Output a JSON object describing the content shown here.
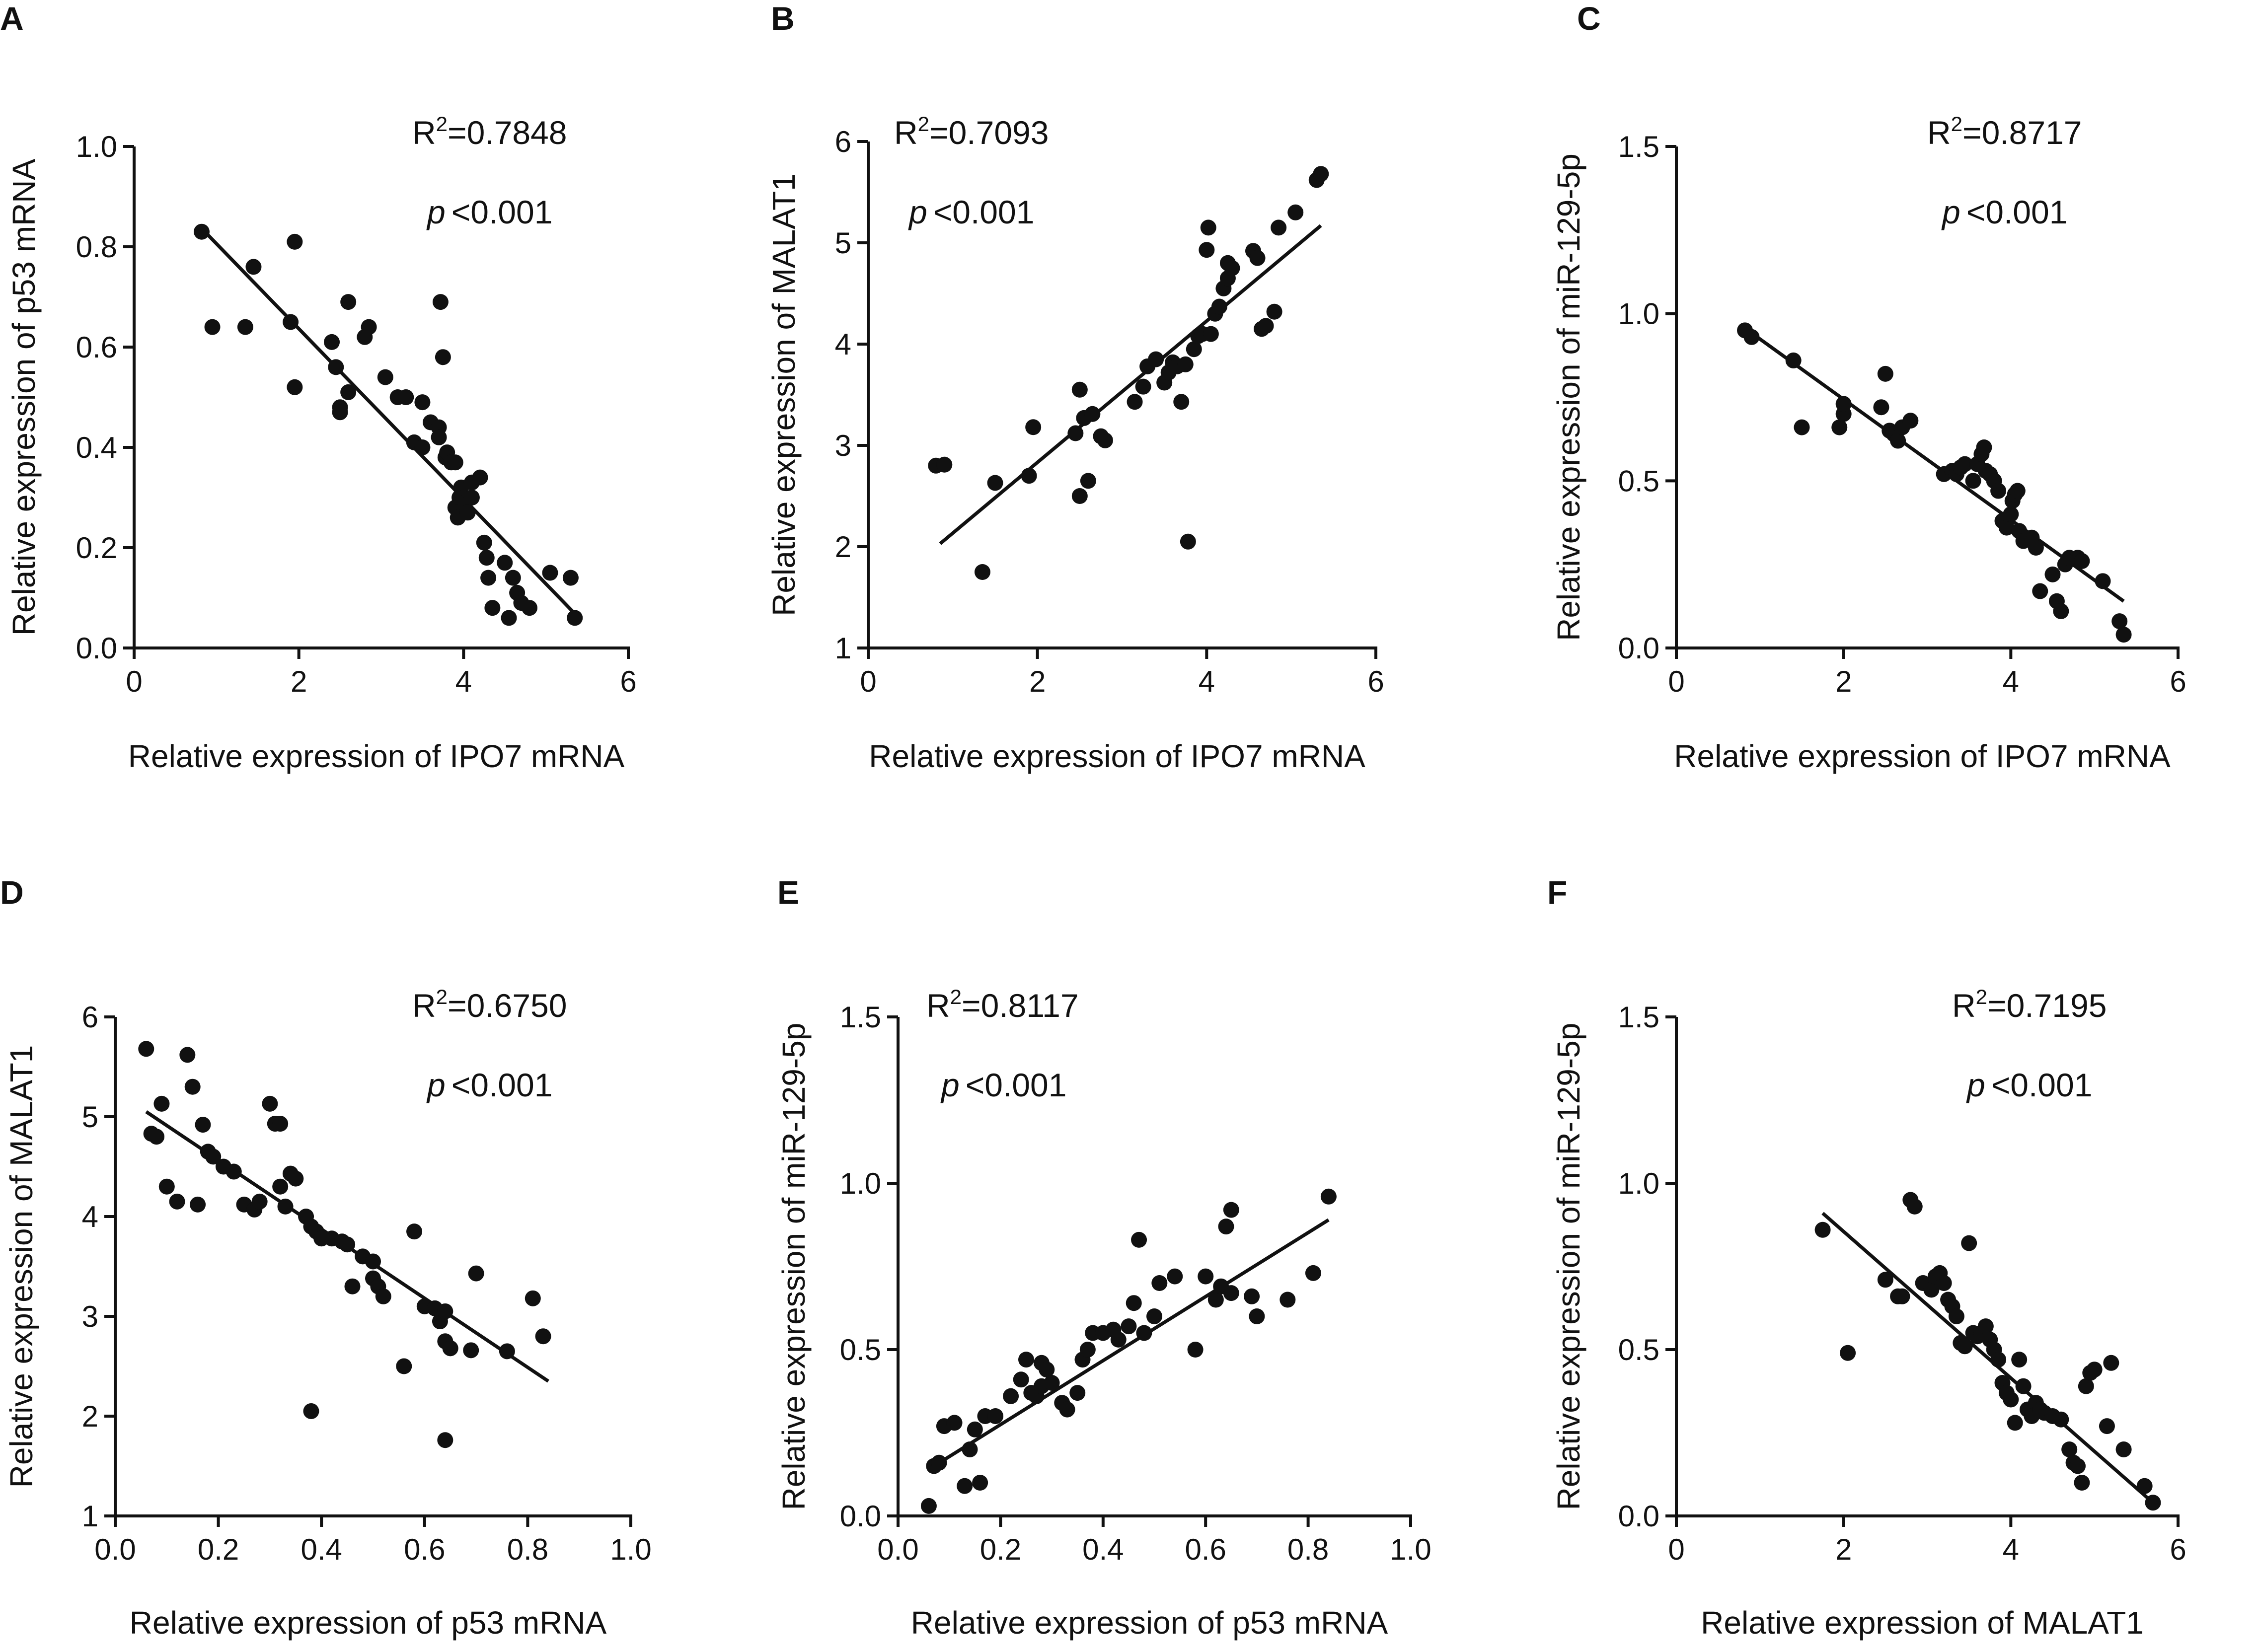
{
  "chart_data": [
    {
      "panel": "A",
      "type": "scatter",
      "xlabel": "Relative expression of IPO7 mRNA",
      "ylabel": "Relative expression of p53 mRNA",
      "xlim": [
        0,
        6
      ],
      "ylim": [
        0.0,
        1.0
      ],
      "xticks": [
        "0",
        "2",
        "4",
        "6"
      ],
      "yticks": [
        "0.0",
        "0.2",
        "0.4",
        "0.6",
        "0.8",
        "1.0"
      ],
      "stat_r2": "=0.7848",
      "stat_p": "<0.001",
      "fit": [
        [
          0.8,
          0.84
        ],
        [
          5.4,
          0.06
        ]
      ],
      "points": [
        [
          0.82,
          0.83
        ],
        [
          0.95,
          0.64
        ],
        [
          1.35,
          0.64
        ],
        [
          1.45,
          0.76
        ],
        [
          1.9,
          0.65
        ],
        [
          1.95,
          0.81
        ],
        [
          1.95,
          0.52
        ],
        [
          2.4,
          0.61
        ],
        [
          2.45,
          0.56
        ],
        [
          2.5,
          0.48
        ],
        [
          2.5,
          0.47
        ],
        [
          2.6,
          0.51
        ],
        [
          2.6,
          0.69
        ],
        [
          2.8,
          0.62
        ],
        [
          2.85,
          0.64
        ],
        [
          3.05,
          0.54
        ],
        [
          3.2,
          0.5
        ],
        [
          3.3,
          0.5
        ],
        [
          3.4,
          0.41
        ],
        [
          3.5,
          0.4
        ],
        [
          3.5,
          0.49
        ],
        [
          3.6,
          0.45
        ],
        [
          3.7,
          0.44
        ],
        [
          3.7,
          0.42
        ],
        [
          3.72,
          0.69
        ],
        [
          3.75,
          0.58
        ],
        [
          3.78,
          0.38
        ],
        [
          3.8,
          0.39
        ],
        [
          3.85,
          0.37
        ],
        [
          3.9,
          0.37
        ],
        [
          3.9,
          0.28
        ],
        [
          3.93,
          0.26
        ],
        [
          3.95,
          0.3
        ],
        [
          3.97,
          0.32
        ],
        [
          4.0,
          0.3
        ],
        [
          4.02,
          0.29
        ],
        [
          4.05,
          0.27
        ],
        [
          4.1,
          0.3
        ],
        [
          4.1,
          0.33
        ],
        [
          4.2,
          0.34
        ],
        [
          4.25,
          0.21
        ],
        [
          4.28,
          0.18
        ],
        [
          4.3,
          0.14
        ],
        [
          4.35,
          0.08
        ],
        [
          4.5,
          0.17
        ],
        [
          4.55,
          0.06
        ],
        [
          4.6,
          0.14
        ],
        [
          4.65,
          0.11
        ],
        [
          4.7,
          0.09
        ],
        [
          4.8,
          0.08
        ],
        [
          5.05,
          0.15
        ],
        [
          5.3,
          0.14
        ],
        [
          5.35,
          0.06
        ]
      ]
    },
    {
      "panel": "B",
      "type": "scatter",
      "xlabel": "Relative expression of IPO7 mRNA",
      "ylabel": "Relative expression of MALAT1",
      "xlim": [
        0,
        6
      ],
      "ylim": [
        1,
        6
      ],
      "xticks": [
        "0",
        "2",
        "4",
        "6"
      ],
      "yticks": [
        "1",
        "2",
        "3",
        "4",
        "5",
        "6"
      ],
      "stat_r2": "=0.7093",
      "stat_p": "<0.001",
      "fit": [
        [
          0.85,
          2.03
        ],
        [
          5.35,
          5.17
        ]
      ],
      "points": [
        [
          0.8,
          2.8
        ],
        [
          0.9,
          2.81
        ],
        [
          1.35,
          1.75
        ],
        [
          1.5,
          2.63
        ],
        [
          1.9,
          2.7
        ],
        [
          1.95,
          3.18
        ],
        [
          2.45,
          3.12
        ],
        [
          2.5,
          2.5
        ],
        [
          2.5,
          3.55
        ],
        [
          2.55,
          3.27
        ],
        [
          2.6,
          2.65
        ],
        [
          2.65,
          3.31
        ],
        [
          2.75,
          3.09
        ],
        [
          2.8,
          3.05
        ],
        [
          3.15,
          3.43
        ],
        [
          3.25,
          3.58
        ],
        [
          3.3,
          3.78
        ],
        [
          3.4,
          3.85
        ],
        [
          3.5,
          3.62
        ],
        [
          3.55,
          3.72
        ],
        [
          3.6,
          3.82
        ],
        [
          3.65,
          3.78
        ],
        [
          3.7,
          3.43
        ],
        [
          3.75,
          3.8
        ],
        [
          3.78,
          2.05
        ],
        [
          3.85,
          3.95
        ],
        [
          3.9,
          4.08
        ],
        [
          3.95,
          4.1
        ],
        [
          4.0,
          4.93
        ],
        [
          4.02,
          5.15
        ],
        [
          4.05,
          4.1
        ],
        [
          4.1,
          4.3
        ],
        [
          4.15,
          4.37
        ],
        [
          4.2,
          4.55
        ],
        [
          4.25,
          4.65
        ],
        [
          4.25,
          4.8
        ],
        [
          4.3,
          4.75
        ],
        [
          4.55,
          4.92
        ],
        [
          4.6,
          4.85
        ],
        [
          4.65,
          4.15
        ],
        [
          4.7,
          4.18
        ],
        [
          4.8,
          4.32
        ],
        [
          4.85,
          5.15
        ],
        [
          5.05,
          5.3
        ],
        [
          5.3,
          5.62
        ],
        [
          5.35,
          5.68
        ]
      ]
    },
    {
      "panel": "C",
      "type": "scatter",
      "xlabel": "Relative expression of IPO7 mRNA",
      "ylabel": "Relative expression of miR-129-5p",
      "xlim": [
        0,
        6
      ],
      "ylim": [
        0.0,
        1.5
      ],
      "xticks": [
        "0",
        "2",
        "4",
        "6"
      ],
      "yticks": [
        "0.0",
        "0.5",
        "1.0",
        "1.5"
      ],
      "stat_r2": "=0.8717",
      "stat_p": "<0.001",
      "fit": [
        [
          0.8,
          0.96
        ],
        [
          5.35,
          0.14
        ]
      ],
      "points": [
        [
          0.82,
          0.95
        ],
        [
          0.9,
          0.93
        ],
        [
          1.4,
          0.86
        ],
        [
          1.5,
          0.66
        ],
        [
          1.95,
          0.66
        ],
        [
          2.0,
          0.7
        ],
        [
          2.0,
          0.73
        ],
        [
          2.45,
          0.72
        ],
        [
          2.5,
          0.82
        ],
        [
          2.55,
          0.65
        ],
        [
          2.6,
          0.64
        ],
        [
          2.65,
          0.62
        ],
        [
          2.7,
          0.66
        ],
        [
          2.8,
          0.68
        ],
        [
          3.2,
          0.52
        ],
        [
          3.3,
          0.53
        ],
        [
          3.35,
          0.52
        ],
        [
          3.4,
          0.54
        ],
        [
          3.45,
          0.55
        ],
        [
          3.55,
          0.5
        ],
        [
          3.6,
          0.55
        ],
        [
          3.65,
          0.58
        ],
        [
          3.68,
          0.6
        ],
        [
          3.7,
          0.53
        ],
        [
          3.75,
          0.52
        ],
        [
          3.8,
          0.5
        ],
        [
          3.85,
          0.47
        ],
        [
          3.9,
          0.38
        ],
        [
          3.95,
          0.36
        ],
        [
          4.0,
          0.4
        ],
        [
          4.02,
          0.44
        ],
        [
          4.05,
          0.46
        ],
        [
          4.08,
          0.47
        ],
        [
          4.1,
          0.35
        ],
        [
          4.15,
          0.32
        ],
        [
          4.25,
          0.33
        ],
        [
          4.3,
          0.3
        ],
        [
          4.35,
          0.17
        ],
        [
          4.5,
          0.22
        ],
        [
          4.55,
          0.14
        ],
        [
          4.6,
          0.11
        ],
        [
          4.65,
          0.25
        ],
        [
          4.7,
          0.27
        ],
        [
          4.8,
          0.27
        ],
        [
          4.85,
          0.26
        ],
        [
          5.1,
          0.2
        ],
        [
          5.3,
          0.08
        ],
        [
          5.35,
          0.04
        ]
      ]
    },
    {
      "panel": "D",
      "type": "scatter",
      "xlabel": "Relative expression of p53 mRNA",
      "ylabel": "Relative expression of MALAT1",
      "xlim": [
        0.0,
        1.0
      ],
      "ylim": [
        1,
        6
      ],
      "xticks": [
        "0.0",
        "0.2",
        "0.4",
        "0.6",
        "0.8",
        "1.0"
      ],
      "yticks": [
        "1",
        "2",
        "3",
        "4",
        "5",
        "6"
      ],
      "stat_r2": "=0.6750",
      "stat_p": "<0.001",
      "fit": [
        [
          0.06,
          5.05
        ],
        [
          0.84,
          2.35
        ]
      ],
      "points": [
        [
          0.06,
          5.68
        ],
        [
          0.07,
          4.83
        ],
        [
          0.08,
          4.8
        ],
        [
          0.09,
          5.13
        ],
        [
          0.1,
          4.3
        ],
        [
          0.12,
          4.15
        ],
        [
          0.14,
          5.62
        ],
        [
          0.15,
          5.3
        ],
        [
          0.16,
          4.12
        ],
        [
          0.17,
          4.92
        ],
        [
          0.18,
          4.65
        ],
        [
          0.19,
          4.6
        ],
        [
          0.21,
          4.5
        ],
        [
          0.23,
          4.45
        ],
        [
          0.25,
          4.12
        ],
        [
          0.27,
          4.07
        ],
        [
          0.28,
          4.15
        ],
        [
          0.3,
          5.13
        ],
        [
          0.31,
          4.93
        ],
        [
          0.32,
          4.93
        ],
        [
          0.32,
          4.3
        ],
        [
          0.33,
          4.1
        ],
        [
          0.34,
          4.43
        ],
        [
          0.35,
          4.38
        ],
        [
          0.37,
          4.0
        ],
        [
          0.38,
          3.9
        ],
        [
          0.39,
          3.85
        ],
        [
          0.4,
          3.78
        ],
        [
          0.38,
          2.05
        ],
        [
          0.42,
          3.78
        ],
        [
          0.44,
          3.75
        ],
        [
          0.45,
          3.72
        ],
        [
          0.46,
          3.3
        ],
        [
          0.48,
          3.6
        ],
        [
          0.5,
          3.55
        ],
        [
          0.5,
          3.38
        ],
        [
          0.51,
          3.3
        ],
        [
          0.52,
          3.2
        ],
        [
          0.56,
          2.5
        ],
        [
          0.58,
          3.85
        ],
        [
          0.6,
          3.1
        ],
        [
          0.62,
          3.08
        ],
        [
          0.63,
          2.95
        ],
        [
          0.64,
          3.05
        ],
        [
          0.64,
          2.75
        ],
        [
          0.65,
          2.68
        ],
        [
          0.64,
          1.76
        ],
        [
          0.69,
          2.66
        ],
        [
          0.7,
          3.43
        ],
        [
          0.76,
          2.65
        ],
        [
          0.81,
          3.18
        ],
        [
          0.83,
          2.8
        ]
      ]
    },
    {
      "panel": "E",
      "type": "scatter",
      "xlabel": "Relative expression of p53 mRNA",
      "ylabel": "Relative expression of miR-129-5p",
      "xlim": [
        0.0,
        1.0
      ],
      "ylim": [
        0.0,
        1.5
      ],
      "xticks": [
        "0.0",
        "0.2",
        "0.4",
        "0.6",
        "0.8",
        "1.0"
      ],
      "yticks": [
        "0.0",
        "0.5",
        "1.0",
        "1.5"
      ],
      "stat_r2": "=0.8117",
      "stat_p": "<0.001",
      "fit": [
        [
          0.06,
          0.14
        ],
        [
          0.84,
          0.89
        ]
      ],
      "points": [
        [
          0.06,
          0.03
        ],
        [
          0.07,
          0.15
        ],
        [
          0.08,
          0.16
        ],
        [
          0.09,
          0.27
        ],
        [
          0.11,
          0.28
        ],
        [
          0.13,
          0.09
        ],
        [
          0.14,
          0.2
        ],
        [
          0.15,
          0.26
        ],
        [
          0.16,
          0.1
        ],
        [
          0.17,
          0.3
        ],
        [
          0.19,
          0.3
        ],
        [
          0.22,
          0.36
        ],
        [
          0.24,
          0.41
        ],
        [
          0.25,
          0.47
        ],
        [
          0.26,
          0.37
        ],
        [
          0.27,
          0.36
        ],
        [
          0.28,
          0.39
        ],
        [
          0.28,
          0.46
        ],
        [
          0.29,
          0.44
        ],
        [
          0.3,
          0.4
        ],
        [
          0.32,
          0.34
        ],
        [
          0.33,
          0.32
        ],
        [
          0.35,
          0.37
        ],
        [
          0.36,
          0.47
        ],
        [
          0.37,
          0.5
        ],
        [
          0.38,
          0.55
        ],
        [
          0.4,
          0.55
        ],
        [
          0.42,
          0.56
        ],
        [
          0.43,
          0.53
        ],
        [
          0.45,
          0.57
        ],
        [
          0.46,
          0.64
        ],
        [
          0.47,
          0.83
        ],
        [
          0.48,
          0.55
        ],
        [
          0.5,
          0.6
        ],
        [
          0.51,
          0.7
        ],
        [
          0.54,
          0.72
        ],
        [
          0.58,
          0.5
        ],
        [
          0.6,
          0.72
        ],
        [
          0.62,
          0.65
        ],
        [
          0.63,
          0.69
        ],
        [
          0.64,
          0.87
        ],
        [
          0.65,
          0.92
        ],
        [
          0.65,
          0.67
        ],
        [
          0.69,
          0.66
        ],
        [
          0.7,
          0.6
        ],
        [
          0.76,
          0.65
        ],
        [
          0.81,
          0.73
        ],
        [
          0.84,
          0.96
        ]
      ]
    },
    {
      "panel": "F",
      "type": "scatter",
      "xlabel": "Relative expression of MALAT1",
      "ylabel": "Relative expression of miR-129-5p",
      "xlim": [
        0,
        6
      ],
      "ylim": [
        0.0,
        1.5
      ],
      "xticks": [
        "0",
        "2",
        "4",
        "6"
      ],
      "yticks": [
        "0.0",
        "0.5",
        "1.0",
        "1.5"
      ],
      "stat_r2": "=0.7195",
      "stat_p": "<0.001",
      "fit": [
        [
          1.75,
          0.91
        ],
        [
          5.7,
          0.04
        ]
      ],
      "points": [
        [
          1.75,
          0.86
        ],
        [
          2.05,
          0.49
        ],
        [
          2.5,
          0.71
        ],
        [
          2.65,
          0.66
        ],
        [
          2.7,
          0.66
        ],
        [
          2.8,
          0.95
        ],
        [
          2.85,
          0.93
        ],
        [
          2.95,
          0.7
        ],
        [
          3.05,
          0.68
        ],
        [
          3.1,
          0.72
        ],
        [
          3.15,
          0.73
        ],
        [
          3.2,
          0.7
        ],
        [
          3.25,
          0.65
        ],
        [
          3.3,
          0.63
        ],
        [
          3.35,
          0.6
        ],
        [
          3.4,
          0.52
        ],
        [
          3.45,
          0.51
        ],
        [
          3.5,
          0.82
        ],
        [
          3.55,
          0.55
        ],
        [
          3.6,
          0.54
        ],
        [
          3.65,
          0.55
        ],
        [
          3.7,
          0.57
        ],
        [
          3.75,
          0.53
        ],
        [
          3.8,
          0.5
        ],
        [
          3.85,
          0.47
        ],
        [
          3.9,
          0.4
        ],
        [
          3.95,
          0.37
        ],
        [
          4.0,
          0.35
        ],
        [
          4.05,
          0.28
        ],
        [
          4.1,
          0.47
        ],
        [
          4.15,
          0.39
        ],
        [
          4.2,
          0.32
        ],
        [
          4.25,
          0.3
        ],
        [
          4.3,
          0.34
        ],
        [
          4.35,
          0.32
        ],
        [
          4.4,
          0.31
        ],
        [
          4.5,
          0.3
        ],
        [
          4.6,
          0.29
        ],
        [
          4.7,
          0.2
        ],
        [
          4.75,
          0.16
        ],
        [
          4.8,
          0.15
        ],
        [
          4.85,
          0.1
        ],
        [
          4.9,
          0.39
        ],
        [
          4.95,
          0.43
        ],
        [
          5.0,
          0.44
        ],
        [
          5.15,
          0.27
        ],
        [
          5.2,
          0.46
        ],
        [
          5.35,
          0.2
        ],
        [
          5.6,
          0.09
        ],
        [
          5.7,
          0.04
        ]
      ]
    }
  ]
}
